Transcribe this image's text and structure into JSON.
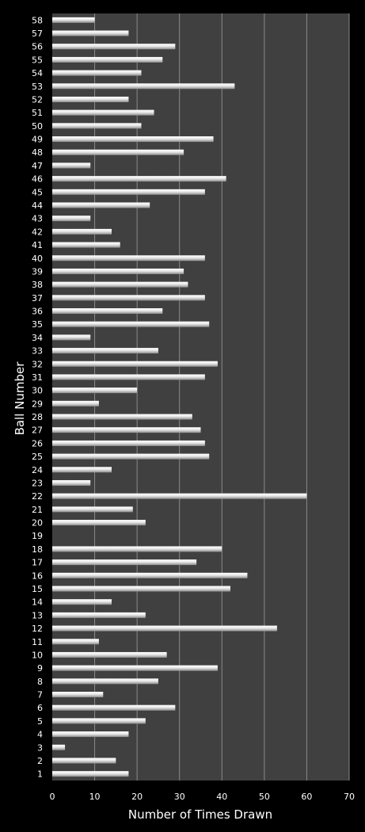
{
  "chart_data": {
    "type": "bar",
    "orientation": "horizontal",
    "title": "",
    "xlabel": "Number of Times Drawn",
    "ylabel": "Ball Number",
    "xlim": [
      0,
      70
    ],
    "x_ticks": [
      0,
      10,
      20,
      30,
      40,
      50,
      60,
      70
    ],
    "grid": "vertical",
    "legend": "none",
    "colors": {
      "background": "#000000",
      "plot_area": "#404040",
      "gridline": "#8a8a8a",
      "bar": "#e8e8e8",
      "text": "#ffffff"
    },
    "categories": [
      "1",
      "2",
      "3",
      "4",
      "5",
      "6",
      "7",
      "8",
      "9",
      "10",
      "11",
      "12",
      "13",
      "14",
      "15",
      "16",
      "17",
      "18",
      "19",
      "20",
      "21",
      "22",
      "23",
      "24",
      "25",
      "26",
      "27",
      "28",
      "29",
      "30",
      "31",
      "32",
      "33",
      "34",
      "35",
      "36",
      "37",
      "38",
      "39",
      "40",
      "41",
      "42",
      "43",
      "44",
      "45",
      "46",
      "47",
      "48",
      "49",
      "50",
      "51",
      "52",
      "53",
      "54",
      "55",
      "56",
      "57",
      "58"
    ],
    "values": [
      18,
      15,
      3,
      18,
      22,
      29,
      12,
      25,
      39,
      27,
      11,
      53,
      22,
      14,
      42,
      46,
      34,
      40,
      0,
      22,
      19,
      60,
      9,
      14,
      37,
      36,
      35,
      33,
      11,
      20,
      36,
      39,
      25,
      9,
      37,
      26,
      36,
      32,
      31,
      36,
      16,
      14,
      9,
      23,
      36,
      41,
      9,
      31,
      38,
      21,
      24,
      18,
      43,
      21,
      26,
      29,
      18,
      10
    ]
  }
}
